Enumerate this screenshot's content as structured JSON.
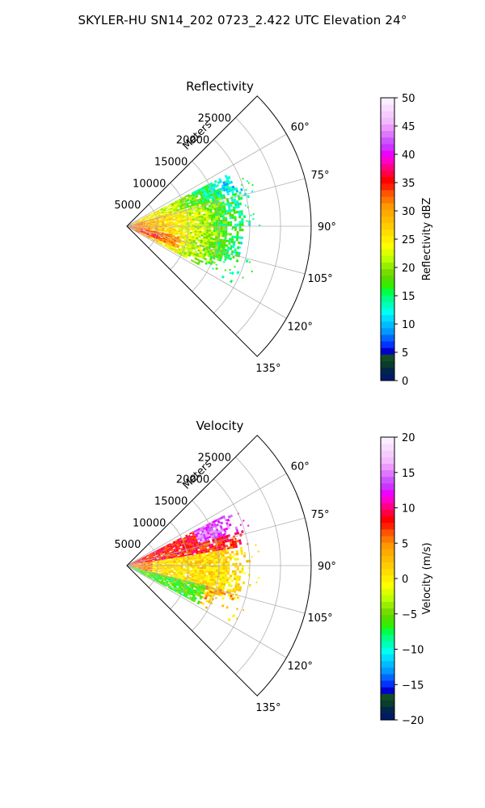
{
  "figure": {
    "title": "SKYLER-HU  SN14_202  0723_2.422 UTC Elevation 24°"
  },
  "chart_data": [
    {
      "type": "heatmap",
      "subtype": "polar-sector",
      "title": "Reflectivity",
      "range_label": "Meters",
      "range_ticks": [
        "5000",
        "10000",
        "15000",
        "20000",
        "25000"
      ],
      "range_max": 30000,
      "range_lim": [
        0,
        30000
      ],
      "theta_lim": [
        45,
        135
      ],
      "theta_ticks": [
        "60°",
        "75°",
        "90°",
        "105°",
        "120°",
        "135°"
      ],
      "grid": true,
      "colorbar": {
        "label": "Reflectivity dBZ",
        "min": 0,
        "max": 50,
        "ticks": [
          "0",
          "5",
          "10",
          "15",
          "20",
          "25",
          "30",
          "35",
          "40",
          "45",
          "50"
        ],
        "colors": [
          "#001a66",
          "#00264d",
          "#0a3d2b",
          "#104d26",
          "#0000cc",
          "#0033ff",
          "#0066ff",
          "#0099ff",
          "#00bbff",
          "#00ddff",
          "#00ffee",
          "#00ffbb",
          "#00ff88",
          "#00ff44",
          "#33ee00",
          "#55dd00",
          "#77dd00",
          "#99ee00",
          "#bbff00",
          "#ddff00",
          "#ffff00",
          "#ffee00",
          "#ffdd00",
          "#ffcc00",
          "#ffbb00",
          "#ffaa00",
          "#ff9900",
          "#ff7700",
          "#ff5500",
          "#ff2200",
          "#ff0000",
          "#ff0044",
          "#ff0088",
          "#ff00cc",
          "#ee00ff",
          "#cc33ff",
          "#cc55ff",
          "#dd77ff",
          "#ee99ff",
          "#f2bbff",
          "#f6ccff",
          "#f9ddff",
          "#fbeeff"
        ]
      },
      "data_summary": {
        "max_range_m": 20000,
        "azimuth_extent_deg": [
          60,
          118
        ],
        "near_field_dBZ": [
          25,
          35
        ],
        "far_field_dBZ": [
          10,
          20
        ]
      }
    },
    {
      "type": "heatmap",
      "subtype": "polar-sector",
      "title": "Velocity",
      "range_label": "Meters",
      "range_ticks": [
        "5000",
        "10000",
        "15000",
        "20000",
        "25000"
      ],
      "range_max": 30000,
      "range_lim": [
        0,
        30000
      ],
      "theta_lim": [
        45,
        135
      ],
      "theta_ticks": [
        "60°",
        "75°",
        "90°",
        "105°",
        "120°",
        "135°"
      ],
      "grid": true,
      "colorbar": {
        "label": "Velocity (m/s)",
        "min": -20,
        "max": 20,
        "ticks": [
          "−20",
          "−15",
          "−10",
          "−5",
          "0",
          "5",
          "10",
          "15",
          "20"
        ],
        "colors": [
          "#001a66",
          "#00264d",
          "#0a3d2b",
          "#104d26",
          "#0000cc",
          "#0033ff",
          "#0066ff",
          "#0099ff",
          "#00bbff",
          "#00ddff",
          "#00ffee",
          "#00ffbb",
          "#00ff88",
          "#00ff44",
          "#33ee00",
          "#55dd00",
          "#77dd00",
          "#99ee00",
          "#bbff00",
          "#ddff00",
          "#ffff00",
          "#ffee00",
          "#ffdd00",
          "#ffcc00",
          "#ffbb00",
          "#ffaa00",
          "#ff9900",
          "#ff7700",
          "#ff5500",
          "#ff2200",
          "#ff0000",
          "#ff0044",
          "#ff0088",
          "#ff00cc",
          "#ee00ff",
          "#cc33ff",
          "#cc55ff",
          "#dd77ff",
          "#ee99ff",
          "#f2bbff",
          "#f6ccff",
          "#f9ddff",
          "#fbeeff"
        ]
      },
      "data_summary": {
        "max_range_m": 20000,
        "azimuth_extent_deg": [
          60,
          118
        ],
        "left_sector_velocity_ms": [
          5,
          10
        ],
        "center_velocity_ms": [
          -2,
          3
        ],
        "southeast_velocity_ms": [
          -8,
          -4
        ],
        "upper_right_velocity_ms": [
          12,
          17
        ]
      }
    }
  ]
}
